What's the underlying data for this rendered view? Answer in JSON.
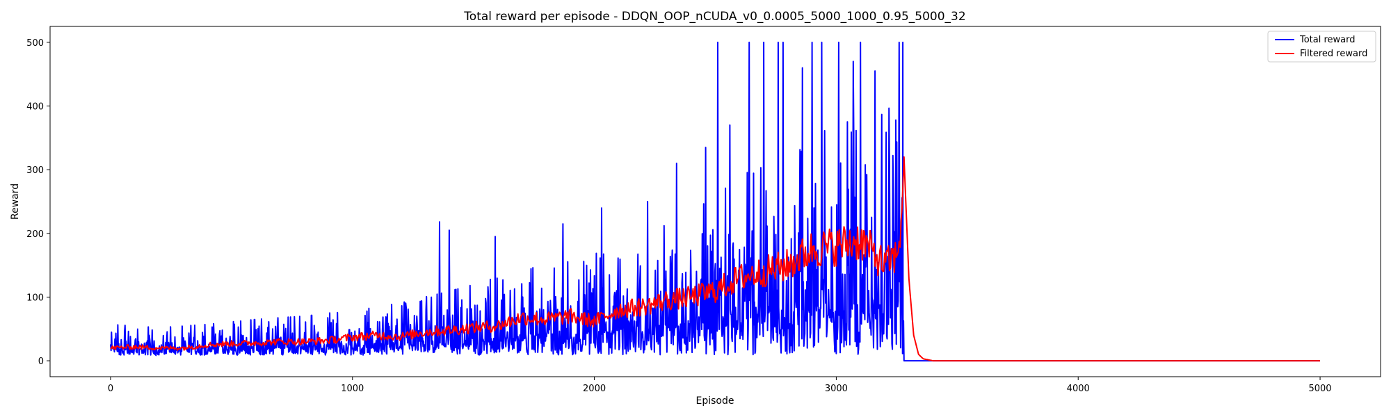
{
  "chart_data": {
    "type": "line",
    "title": "Total reward per episode - DDQN_OOP_nCUDA_v0_0.0005_5000_1000_0.95_5000_32",
    "xlabel": "Episode",
    "ylabel": "Reward",
    "xlim": [
      -250,
      5250
    ],
    "ylim": [
      -25,
      525
    ],
    "xticks": [
      0,
      1000,
      2000,
      3000,
      4000,
      5000
    ],
    "yticks": [
      0,
      100,
      200,
      300,
      400,
      500
    ],
    "grid": false,
    "legend_position": "top-right",
    "series": [
      {
        "name": "Total reward",
        "color": "#0000ff",
        "trend": {
          "x": [
            0,
            200,
            400,
            600,
            800,
            1000,
            1200,
            1400,
            1600,
            1800,
            2000,
            2200,
            2400,
            2600,
            2800,
            3000,
            3100,
            3200,
            3270
          ],
          "y": [
            22,
            20,
            22,
            25,
            27,
            30,
            35,
            42,
            50,
            58,
            62,
            75,
            90,
            110,
            125,
            135,
            140,
            150,
            160
          ]
        },
        "spikes": [
          {
            "x": 2510,
            "y": 500
          },
          {
            "x": 2640,
            "y": 500
          },
          {
            "x": 2700,
            "y": 500
          },
          {
            "x": 2760,
            "y": 500
          },
          {
            "x": 2780,
            "y": 500
          },
          {
            "x": 2900,
            "y": 500
          },
          {
            "x": 2940,
            "y": 500
          },
          {
            "x": 3010,
            "y": 500
          },
          {
            "x": 3100,
            "y": 500
          },
          {
            "x": 3260,
            "y": 500
          },
          {
            "x": 3275,
            "y": 500
          },
          {
            "x": 1360,
            "y": 218
          },
          {
            "x": 1400,
            "y": 205
          },
          {
            "x": 1590,
            "y": 195
          },
          {
            "x": 1870,
            "y": 215
          },
          {
            "x": 2030,
            "y": 240
          },
          {
            "x": 2220,
            "y": 250
          },
          {
            "x": 2340,
            "y": 310
          },
          {
            "x": 2460,
            "y": 335
          },
          {
            "x": 2560,
            "y": 370
          },
          {
            "x": 2860,
            "y": 460
          },
          {
            "x": 3070,
            "y": 470
          },
          {
            "x": 3160,
            "y": 455
          },
          {
            "x": 3220,
            "y": 310
          }
        ],
        "drop_episode": 3280,
        "after_value": 0,
        "x_end": 5000
      },
      {
        "name": "Filtered reward",
        "color": "#ff0000",
        "points": {
          "x": [
            0,
            100,
            200,
            300,
            400,
            500,
            600,
            700,
            800,
            900,
            1000,
            1100,
            1200,
            1300,
            1400,
            1500,
            1600,
            1700,
            1800,
            1900,
            2000,
            2100,
            2200,
            2300,
            2400,
            2500,
            2600,
            2700,
            2800,
            2900,
            3000,
            3100,
            3150,
            3200,
            3250,
            3270,
            3280,
            3300,
            3320,
            3340,
            3360,
            3400,
            5000
          ],
          "y": [
            20,
            22,
            20,
            20,
            25,
            27,
            28,
            30,
            30,
            32,
            37,
            40,
            38,
            45,
            48,
            52,
            55,
            68,
            65,
            70,
            62,
            80,
            85,
            95,
            100,
            110,
            130,
            140,
            150,
            175,
            180,
            190,
            170,
            150,
            165,
            220,
            320,
            130,
            40,
            10,
            3,
            0,
            0
          ]
        }
      }
    ]
  }
}
